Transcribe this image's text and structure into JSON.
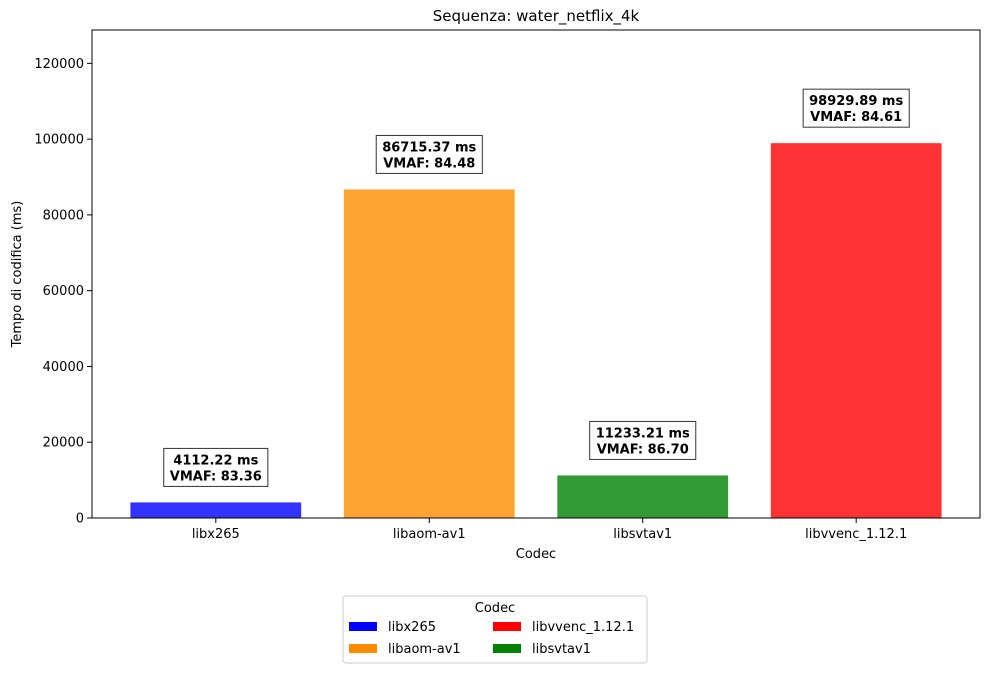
{
  "chart_data": {
    "type": "bar",
    "title": "Sequenza: water_netflix_4k",
    "xlabel": "Codec",
    "ylabel": "Tempo di codifica (ms)",
    "ylim": [
      0,
      128800
    ],
    "yticks": [
      0,
      20000,
      40000,
      60000,
      80000,
      100000,
      120000
    ],
    "ytick_labels": [
      "0",
      "20000",
      "40000",
      "60000",
      "80000",
      "100000",
      "120000"
    ],
    "grid": false,
    "categories": [
      "libx265",
      "libaom-av1",
      "libsvtav1",
      "libvvenc_1.12.1"
    ],
    "values": [
      4112.22,
      86715.37,
      11233.21,
      98929.89
    ],
    "bar_colors": [
      "#3333ff",
      "#ffa333",
      "#339933",
      "#ff3333"
    ],
    "annotations": [
      {
        "line1": "4112.22 ms",
        "line2": "VMAF: 83.36"
      },
      {
        "line1": "86715.37 ms",
        "line2": "VMAF: 84.48"
      },
      {
        "line1": "11233.21 ms",
        "line2": "VMAF: 86.70"
      },
      {
        "line1": "98929.89 ms",
        "line2": "VMAF: 84.61"
      }
    ],
    "legend": {
      "title": "Codec",
      "placement": "bottom-center",
      "entries": [
        {
          "label": "libx265",
          "color": "#0000ff"
        },
        {
          "label": "libaom-av1",
          "color": "#ff8c00"
        },
        {
          "label": "libvvenc_1.12.1",
          "color": "#ff0000"
        },
        {
          "label": "libsvtav1",
          "color": "#008000"
        }
      ]
    }
  }
}
